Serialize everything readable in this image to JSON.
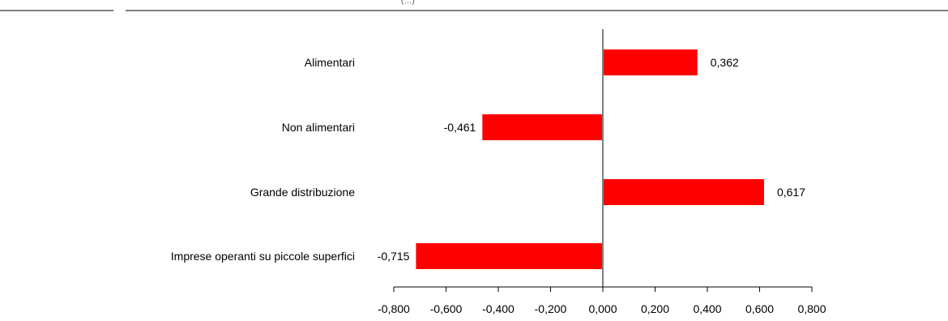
{
  "chart_data": {
    "type": "bar",
    "orientation": "horizontal",
    "categories": [
      "Alimentari",
      "Non alimentari",
      "Grande distribuzione",
      "Imprese operanti su piccole superfici"
    ],
    "values": [
      0.362,
      -0.461,
      0.617,
      -0.715
    ],
    "value_labels": [
      "0,362",
      "-0,461",
      "0,617",
      "-0,715"
    ],
    "xlim": [
      -0.8,
      0.8
    ],
    "ticks": [
      -0.8,
      -0.6,
      -0.4,
      -0.2,
      0.0,
      0.2,
      0.4,
      0.6,
      0.8
    ],
    "tick_labels": [
      "-0,800",
      "-0,600",
      "-0,400",
      "-0,200",
      "0,000",
      "0,200",
      "0,400",
      "0,600",
      "0,800"
    ],
    "bar_color": "#ff0000",
    "grid": false,
    "legend": "none"
  },
  "header": {
    "text": "(…)"
  }
}
